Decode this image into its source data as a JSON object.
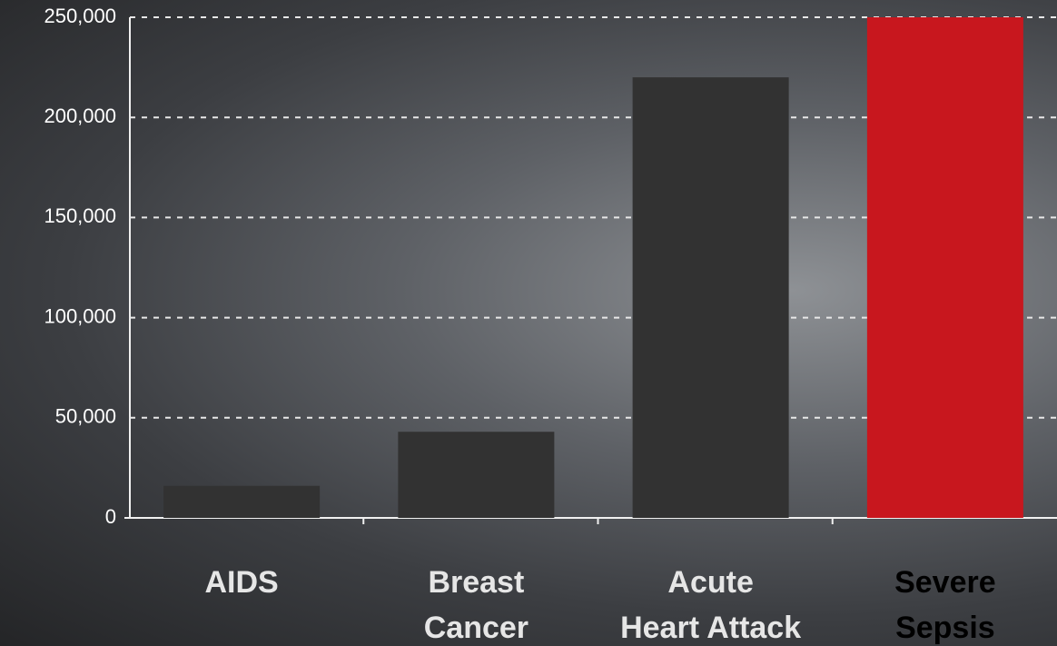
{
  "chart_data": {
    "type": "bar",
    "categories": [
      [
        "AIDS"
      ],
      [
        "Breast",
        "Cancer"
      ],
      [
        "Acute",
        "Heart Attack"
      ],
      [
        "Severe",
        "Sepsis"
      ]
    ],
    "values": [
      16000,
      43000,
      220000,
      250000
    ],
    "colors": [
      "#323232",
      "#323232",
      "#323232",
      "#c8171e"
    ],
    "ylim": [
      0,
      250000
    ],
    "yticks": [
      0,
      {
        "value": 50000,
        "label": "50,000"
      },
      {
        "value": 100000,
        "label": "100,000"
      },
      {
        "value": 150000,
        "label": "150,000"
      },
      {
        "value": 200000,
        "label": "200,000"
      },
      {
        "value": 250000,
        "label": "250,000"
      }
    ],
    "grid": true
  }
}
